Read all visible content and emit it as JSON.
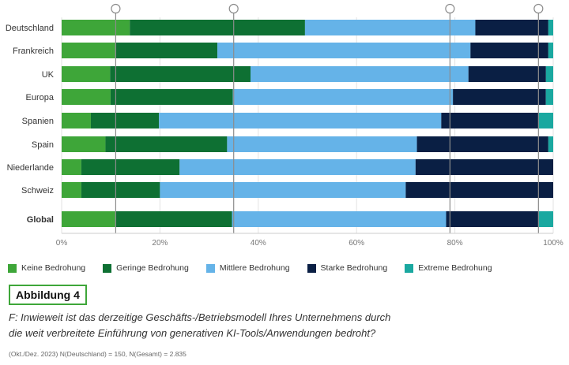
{
  "chart_data": {
    "type": "bar",
    "orientation": "horizontal",
    "stacked": true,
    "categories": [
      "Deutschland",
      "Frankreich",
      "UK",
      "Europa",
      "Spanien",
      "Spain",
      "Niederlande",
      "Schweiz",
      "Global"
    ],
    "series": [
      {
        "name": "Keine Bedrohung",
        "color": "#3ea639",
        "values": [
          14,
          11,
          10,
          10,
          6,
          9,
          4,
          4,
          11
        ]
      },
      {
        "name": "Geringe Bedrohung",
        "color": "#0e7033",
        "values": [
          36,
          21,
          29,
          25,
          14,
          25,
          20,
          16,
          24
        ]
      },
      {
        "name": "Mittlere Bedrohung",
        "color": "#65b3e8",
        "values": [
          35,
          52,
          45,
          45,
          58,
          39,
          48,
          50,
          44
        ]
      },
      {
        "name": "Starke Bedrohung",
        "color": "#0a1f44",
        "values": [
          15,
          16,
          16,
          19,
          20,
          27,
          28,
          30,
          19
        ]
      },
      {
        "name": "Extreme Bedrohung",
        "color": "#1aa8a0",
        "values": [
          1,
          1,
          1.5,
          1.5,
          3,
          1,
          0,
          0,
          3
        ]
      }
    ],
    "xlim": [
      0,
      100
    ],
    "x_ticks": [
      "0%",
      "20%",
      "40%",
      "60%",
      "80%",
      "100%"
    ],
    "reference_lines": [
      11,
      35,
      79,
      97
    ],
    "legend_position": "bottom"
  },
  "figure_label": "Abbildung 4",
  "question_lines": [
    "F: Inwieweit ist das derzeitige Geschäfts-/Betriebsmodell Ihres Unternehmens durch",
    "die weit verbreitete Einführung von generativen KI-Tools/Anwendungen bedroht?"
  ],
  "footnote": "(Okt./Dez. 2023) N(Deutschland) = 150, N(Gesamt) = 2.835"
}
